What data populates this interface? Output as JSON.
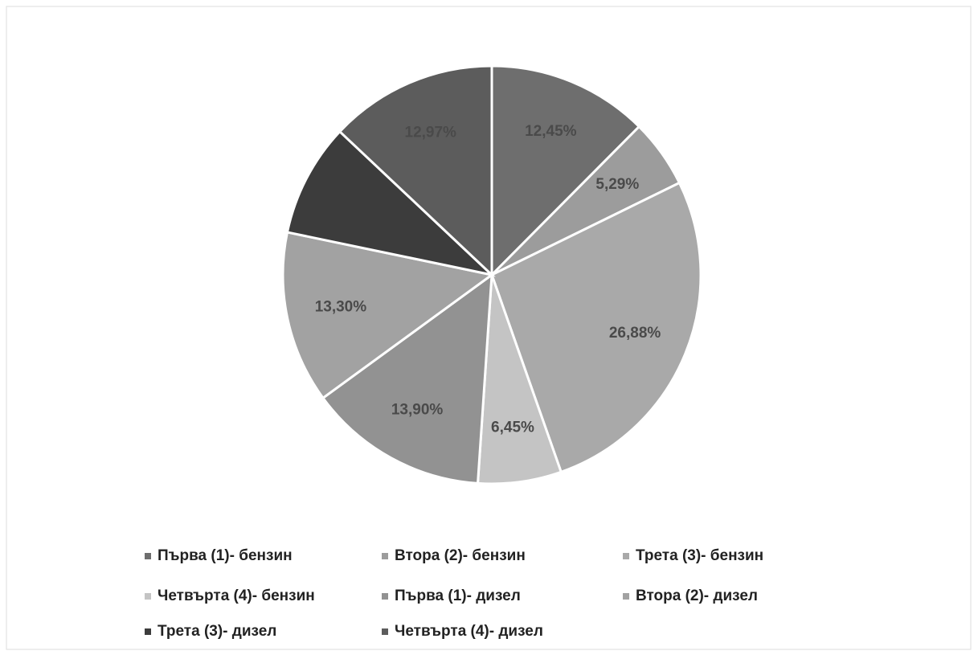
{
  "chart_data": {
    "type": "pie",
    "categories": [
      "Първа (1)- бензин",
      "Втора (2)- бензин",
      "Трета (3)- бензин",
      "Четвърта (4)- бензин",
      "Първа (1)- дизел",
      "Втора (2)- дизел",
      "Трета (3)- дизел",
      "Четвърта (4)- дизел"
    ],
    "values": [
      12.45,
      5.29,
      26.88,
      6.45,
      13.9,
      13.3,
      8.76,
      12.97
    ],
    "value_labels": [
      "12,45%",
      "5,29%",
      "26,88%",
      "6,45%",
      "13,90%",
      "13,30%",
      null,
      "12,97%"
    ],
    "colors": [
      "#6e6e6e",
      "#9c9c9c",
      "#a9a9a9",
      "#c4c4c4",
      "#929292",
      "#a2a2a2",
      "#3c3c3c",
      "#5c5c5c"
    ],
    "legend": "bottom"
  }
}
